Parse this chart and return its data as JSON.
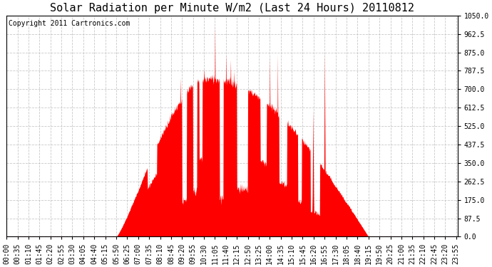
{
  "title": "Solar Radiation per Minute W/m2 (Last 24 Hours) 20110812",
  "copyright_text": "Copyright 2011 Cartronics.com",
  "ylim": [
    0,
    1050
  ],
  "yticks": [
    0.0,
    87.5,
    175.0,
    262.5,
    350.0,
    437.5,
    525.0,
    612.5,
    700.0,
    787.5,
    875.0,
    962.5,
    1050.0
  ],
  "fill_color": "#FF0000",
  "bg_color": "#FFFFFF",
  "grid_color": "#BBBBBB",
  "title_fontsize": 11,
  "copyright_fontsize": 7,
  "tick_fontsize": 7,
  "n_minutes": 1440,
  "tick_interval": 35
}
